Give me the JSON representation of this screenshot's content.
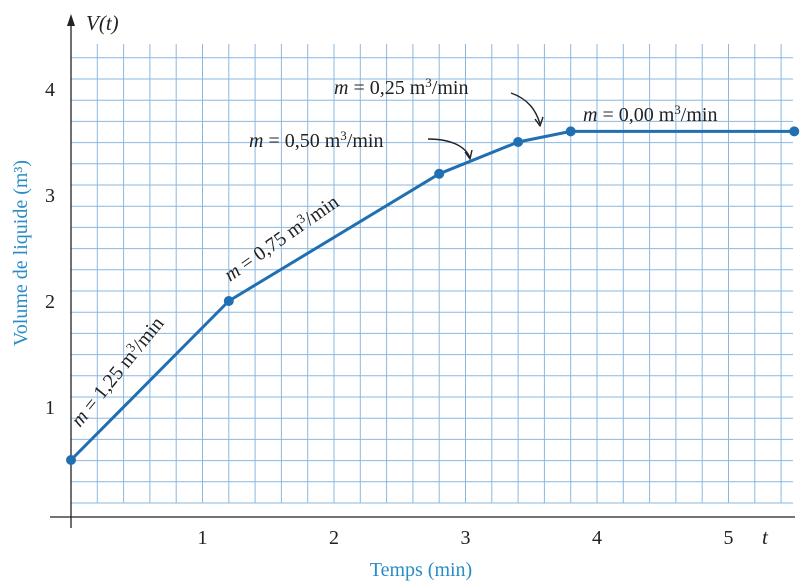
{
  "colors": {
    "grid": "#8ab8e0",
    "line": "#1f6fb2",
    "axis": "#222222",
    "axis_title": "#2a8cc7"
  },
  "chart_data": {
    "type": "line",
    "title": "",
    "xlabel": "Temps (min)",
    "ylabel": "Volume de liquide (m³)",
    "y_var_label": "V(t)",
    "x_var_label": "t",
    "xlim": [
      0,
      5.5
    ],
    "ylim": [
      -0.5,
      4.5
    ],
    "grid": true,
    "x_ticks": [
      "1",
      "2",
      "3",
      "4",
      "5"
    ],
    "y_ticks": [
      "1",
      "2",
      "3",
      "4"
    ],
    "x_tick_values": [
      1,
      2,
      3,
      4,
      5
    ],
    "y_tick_values": [
      1,
      2,
      3,
      4
    ],
    "series": [
      {
        "x": [
          0,
          1.2,
          2.8,
          3.4,
          3.8,
          5.5
        ],
        "y": [
          0.5,
          2.0,
          3.2,
          3.5,
          3.6,
          3.6
        ]
      }
    ],
    "annotations": [
      {
        "m": "m",
        "text": " = 1,25 m",
        "sup": "3",
        "unit": "/min"
      },
      {
        "m": "m",
        "text": " = 0,75 m",
        "sup": "3",
        "unit": "/min"
      },
      {
        "m": "m",
        "text": " = 0,50 m",
        "sup": "3",
        "unit": "/min"
      },
      {
        "m": "m",
        "text": " = 0,25 m",
        "sup": "3",
        "unit": "/min"
      },
      {
        "m": "m",
        "text": " = 0,00 m",
        "sup": "3",
        "unit": "/min"
      }
    ]
  }
}
